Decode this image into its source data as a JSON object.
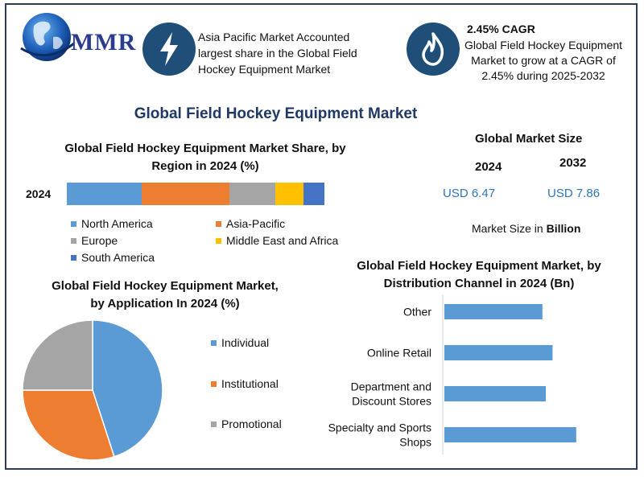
{
  "header": {
    "logo_text": "MMR",
    "info_left": "Asia Pacific Market Accounted largest share in the Global Field Hockey Equipment  Market",
    "cagr_title": "2.45% CAGR",
    "cagr_text": "Global Field Hockey Equipment Market to grow at a CAGR of 2.45% during 2025-2032"
  },
  "main_title": "Global Field Hockey Equipment Market",
  "market_size": {
    "title": "Global Market Size",
    "year1": "2024",
    "year2": "2032",
    "value1": "USD 6.47",
    "value2": "USD 7.86",
    "unit_prefix": "Market Size in ",
    "unit_bold": "Billion"
  },
  "colors": {
    "north_america": "#5b9bd5",
    "asia_pacific": "#ed7d31",
    "europe": "#a5a5a5",
    "mea": "#ffc000",
    "south_america": "#4472c4"
  },
  "chart_data": [
    {
      "type": "bar",
      "orientation": "horizontal-stacked",
      "title": "Global Field Hockey Equipment Market Share, by Region in 2024 (%)",
      "categories": [
        "2024"
      ],
      "series": [
        {
          "name": "North America",
          "values": [
            29
          ],
          "color": "#5b9bd5"
        },
        {
          "name": "Asia-Pacific",
          "values": [
            34
          ],
          "color": "#ed7d31"
        },
        {
          "name": "Europe",
          "values": [
            18
          ],
          "color": "#a5a5a5"
        },
        {
          "name": "Middle East and Africa",
          "values": [
            11
          ],
          "color": "#ffc000"
        },
        {
          "name": "South America",
          "values": [
            8
          ],
          "color": "#4472c4"
        }
      ],
      "legend": "bottom"
    },
    {
      "type": "pie",
      "title": "Global Field Hockey Equipment Market, by Application  In 2024 (%)",
      "labels": [
        "Individual",
        "Institutional",
        "Promotional"
      ],
      "values": [
        45,
        30,
        25
      ],
      "colors": [
        "#5b9bd5",
        "#ed7d31",
        "#a5a5a5"
      ],
      "legend": "right"
    },
    {
      "type": "bar",
      "orientation": "horizontal",
      "title": "Global Field Hockey Equipment Market, by Distribution Channel  in 2024 (Bn)",
      "categories": [
        "Other",
        "Online Retail",
        "Department and Discount Stores",
        "Specialty and Sports Shops"
      ],
      "category_lines": [
        [
          "Other"
        ],
        [
          "Online Retail"
        ],
        [
          "Department and",
          "Discount Stores"
        ],
        [
          "Specialty and Sports",
          "Shops"
        ]
      ],
      "values": [
        1.45,
        1.6,
        1.5,
        1.95
      ],
      "xlim": [
        0,
        2.5
      ],
      "color": "#5b9bd5"
    }
  ]
}
